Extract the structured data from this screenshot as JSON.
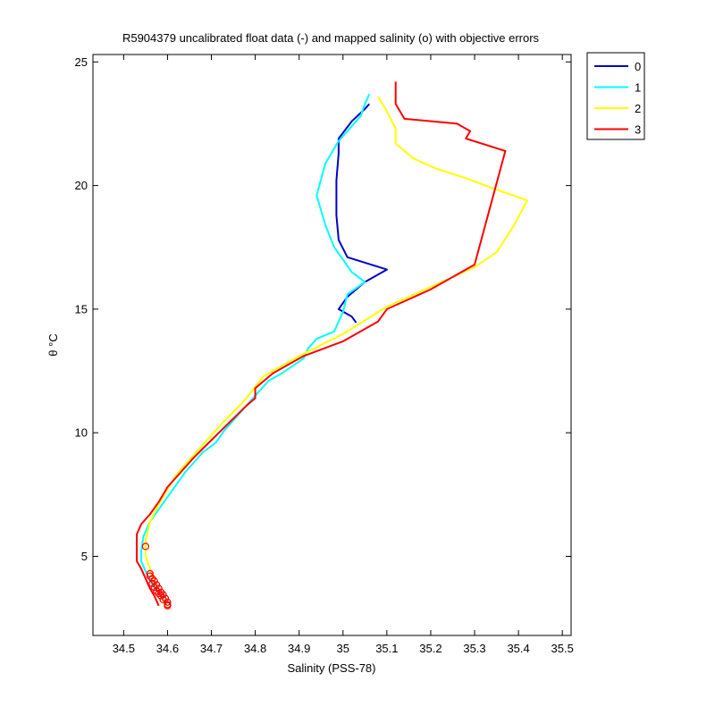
{
  "chart_data": {
    "type": "line",
    "title": "R5904379 uncalibrated float data (-) and mapped salinity (o) with objective errors",
    "xlabel": "Salinity (PSS-78)",
    "ylabel": "θ °C",
    "xlim": [
      34.43,
      35.52
    ],
    "ylim": [
      1.8,
      25.3
    ],
    "xticks": [
      "34.5",
      "34.6",
      "34.7",
      "34.8",
      "34.9",
      "35",
      "35.1",
      "35.2",
      "35.3",
      "35.4",
      "35.5"
    ],
    "xtick_values": [
      34.5,
      34.6,
      34.7,
      34.8,
      34.9,
      35.0,
      35.1,
      35.2,
      35.3,
      35.4,
      35.5
    ],
    "yticks": [
      "5",
      "10",
      "15",
      "20",
      "25"
    ],
    "ytick_values": [
      5,
      10,
      15,
      20,
      25
    ],
    "grid": false,
    "legend_position": "outside-top-right",
    "series": [
      {
        "name": "0",
        "color": "#0000cc",
        "points": [
          [
            35.06,
            23.3
          ],
          [
            35.05,
            23.1
          ],
          [
            35.02,
            22.6
          ],
          [
            34.99,
            21.9
          ],
          [
            34.99,
            21.3
          ],
          [
            34.985,
            20.2
          ],
          [
            34.985,
            18.8
          ],
          [
            34.99,
            17.8
          ],
          [
            35.01,
            17.1
          ],
          [
            35.1,
            16.6
          ],
          [
            35.05,
            16.1
          ],
          [
            35.01,
            15.5
          ],
          [
            34.99,
            15.0
          ],
          [
            35.02,
            14.7
          ],
          [
            35.03,
            14.45
          ]
        ]
      },
      {
        "name": "1",
        "color": "#00ffff",
        "points": [
          [
            35.06,
            23.7
          ],
          [
            35.05,
            23.3
          ],
          [
            35.04,
            22.8
          ],
          [
            35.02,
            22.4
          ],
          [
            34.99,
            21.8
          ],
          [
            34.96,
            20.9
          ],
          [
            34.94,
            19.6
          ],
          [
            34.96,
            18.4
          ],
          [
            34.98,
            17.5
          ],
          [
            35.02,
            16.5
          ],
          [
            35.05,
            16.1
          ],
          [
            35.01,
            15.6
          ],
          [
            35.0,
            14.9
          ],
          [
            34.98,
            14.1
          ],
          [
            34.94,
            13.8
          ],
          [
            34.92,
            13.4
          ],
          [
            34.91,
            13.0
          ],
          [
            34.86,
            12.4
          ],
          [
            34.83,
            12.1
          ],
          [
            34.81,
            11.7
          ],
          [
            34.79,
            11.3
          ],
          [
            34.77,
            10.9
          ],
          [
            34.75,
            10.5
          ],
          [
            34.73,
            10.1
          ],
          [
            34.71,
            9.6
          ],
          [
            34.68,
            9.2
          ],
          [
            34.66,
            8.8
          ],
          [
            34.64,
            8.4
          ],
          [
            34.62,
            7.9
          ],
          [
            34.6,
            7.4
          ],
          [
            34.58,
            6.9
          ],
          [
            34.56,
            6.4
          ],
          [
            34.545,
            5.8
          ],
          [
            34.54,
            5.2
          ],
          [
            34.54,
            4.8
          ],
          [
            34.55,
            4.4
          ],
          [
            34.56,
            4.0
          ],
          [
            34.575,
            3.6
          ],
          [
            34.59,
            3.3
          ],
          [
            34.6,
            3.0
          ]
        ]
      },
      {
        "name": "2",
        "color": "#ffff00",
        "points": [
          [
            35.08,
            23.6
          ],
          [
            35.1,
            23.0
          ],
          [
            35.12,
            22.3
          ],
          [
            35.12,
            21.7
          ],
          [
            35.16,
            21.1
          ],
          [
            35.21,
            20.7
          ],
          [
            35.28,
            20.3
          ],
          [
            35.34,
            19.9
          ],
          [
            35.42,
            19.4
          ],
          [
            35.39,
            18.4
          ],
          [
            35.35,
            17.3
          ],
          [
            35.3,
            16.7
          ],
          [
            35.2,
            15.9
          ],
          [
            35.1,
            15.1
          ],
          [
            35.0,
            14.0
          ],
          [
            34.9,
            13.1
          ],
          [
            34.82,
            12.3
          ],
          [
            34.77,
            11.2
          ],
          [
            34.72,
            10.3
          ],
          [
            34.68,
            9.5
          ],
          [
            34.65,
            8.9
          ],
          [
            34.62,
            8.3
          ],
          [
            34.6,
            7.7
          ],
          [
            34.58,
            7.1
          ],
          [
            34.56,
            6.4
          ],
          [
            34.55,
            5.6
          ],
          [
            34.55,
            5.0
          ],
          [
            34.56,
            4.5
          ],
          [
            34.57,
            4.0
          ],
          [
            34.58,
            3.6
          ],
          [
            34.59,
            3.2
          ],
          [
            34.6,
            2.9
          ]
        ]
      },
      {
        "name": "3",
        "color": "#ff0000",
        "points": [
          [
            35.12,
            24.2
          ],
          [
            35.12,
            23.3
          ],
          [
            35.13,
            23.0
          ],
          [
            35.14,
            22.7
          ],
          [
            35.26,
            22.5
          ],
          [
            35.29,
            22.2
          ],
          [
            35.28,
            21.9
          ],
          [
            35.37,
            21.4
          ],
          [
            35.3,
            16.8
          ],
          [
            35.2,
            15.8
          ],
          [
            35.1,
            15.0
          ],
          [
            35.08,
            14.5
          ],
          [
            35.0,
            13.7
          ],
          [
            34.91,
            13.1
          ],
          [
            34.84,
            12.4
          ],
          [
            34.8,
            11.8
          ],
          [
            34.8,
            11.4
          ],
          [
            34.78,
            11.1
          ],
          [
            34.74,
            10.4
          ],
          [
            34.7,
            9.7
          ],
          [
            34.66,
            9.0
          ],
          [
            34.63,
            8.4
          ],
          [
            34.6,
            7.8
          ],
          [
            34.58,
            7.2
          ],
          [
            34.56,
            6.7
          ],
          [
            34.54,
            6.3
          ],
          [
            34.53,
            5.9
          ],
          [
            34.53,
            5.3
          ],
          [
            34.53,
            4.8
          ],
          [
            34.54,
            4.5
          ],
          [
            34.55,
            4.1
          ],
          [
            34.56,
            3.7
          ],
          [
            34.57,
            3.4
          ],
          [
            34.58,
            3.0
          ]
        ]
      }
    ],
    "mapped_salinity": {
      "name": "mapped salinity (o)",
      "color": "#ff0000",
      "points": [
        [
          34.55,
          5.4
        ],
        [
          34.56,
          4.3
        ],
        [
          34.56,
          4.2
        ],
        [
          34.565,
          4.1
        ],
        [
          34.57,
          4.0
        ],
        [
          34.565,
          3.9
        ],
        [
          34.575,
          3.85
        ],
        [
          34.57,
          3.75
        ],
        [
          34.58,
          3.7
        ],
        [
          34.575,
          3.6
        ],
        [
          34.585,
          3.55
        ],
        [
          34.58,
          3.5
        ],
        [
          34.59,
          3.45
        ],
        [
          34.585,
          3.4
        ],
        [
          34.595,
          3.3
        ],
        [
          34.59,
          3.25
        ],
        [
          34.6,
          3.15
        ],
        [
          34.6,
          3.05
        ],
        [
          34.6,
          3.0
        ]
      ]
    }
  }
}
